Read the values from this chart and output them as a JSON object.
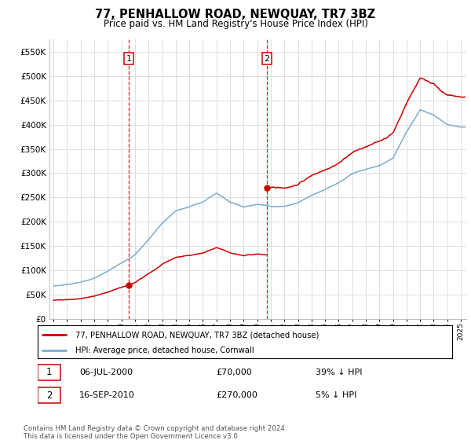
{
  "title": "77, PENHALLOW ROAD, NEWQUAY, TR7 3BZ",
  "subtitle": "Price paid vs. HM Land Registry's House Price Index (HPI)",
  "legend_line1": "77, PENHALLOW ROAD, NEWQUAY, TR7 3BZ (detached house)",
  "legend_line2": "HPI: Average price, detached house, Cornwall",
  "transaction1_date": "06-JUL-2000",
  "transaction1_price": "£70,000",
  "transaction1_hpi": "39% ↓ HPI",
  "transaction2_date": "16-SEP-2010",
  "transaction2_price": "£270,000",
  "transaction2_hpi": "5% ↓ HPI",
  "footnote": "Contains HM Land Registry data © Crown copyright and database right 2024.\nThis data is licensed under the Open Government Licence v3.0.",
  "red_color": "#cc0000",
  "blue_color": "#7aabcf",
  "dashed_color": "#cc0000",
  "grid_color": "#dddddd",
  "ylim": [
    0,
    575000
  ],
  "yticks": [
    0,
    50000,
    100000,
    150000,
    200000,
    250000,
    300000,
    350000,
    400000,
    450000,
    500000,
    550000
  ],
  "transaction1_x": 2000.54,
  "transaction1_y": 70000,
  "transaction2_x": 2010.71,
  "transaction2_y": 270000,
  "xmin": 1994.7,
  "xmax": 2025.4
}
